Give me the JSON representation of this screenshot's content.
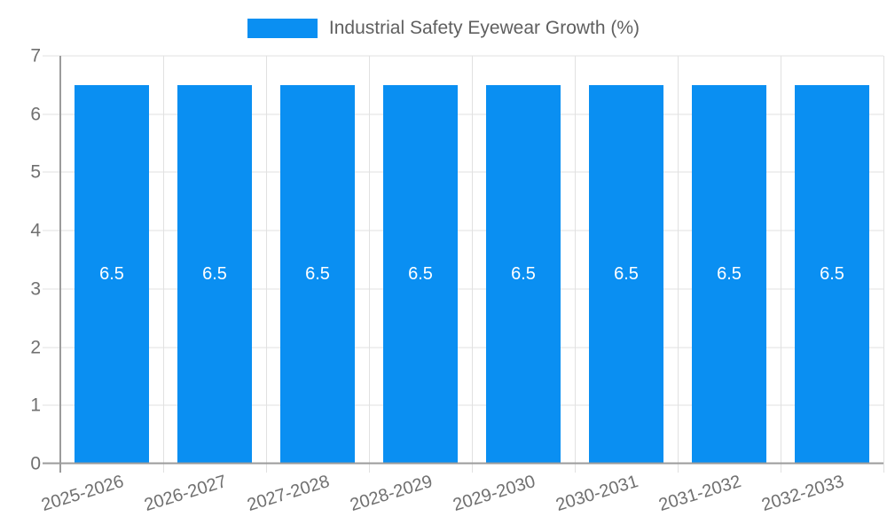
{
  "chart_data": {
    "type": "bar",
    "title": "Industrial Safety Eyewear Growth (%)",
    "categories": [
      "2025-2026",
      "2026-2027",
      "2027-2028",
      "2028-2029",
      "2029-2030",
      "2030-2031",
      "2031-2032",
      "2032-2033"
    ],
    "values": [
      6.5,
      6.5,
      6.5,
      6.5,
      6.5,
      6.5,
      6.5,
      6.5
    ],
    "bar_labels": [
      "6.5",
      "6.5",
      "6.5",
      "6.5",
      "6.5",
      "6.5",
      "6.5",
      "6.5"
    ],
    "xlabel": "",
    "ylabel": "",
    "ylim": [
      0,
      7
    ],
    "yticks": [
      0,
      1,
      2,
      3,
      4,
      5,
      6,
      7
    ],
    "grid": true,
    "legend_position": "top",
    "x_tick_rotation_deg": -17,
    "colors": {
      "bar": "#0a8ff2",
      "grid_line": "#e1e1e1",
      "axis_line": "#9b9b9b",
      "tick_text": "#707070",
      "legend_text": "#5f5f5f",
      "bar_label_text": "#ffffff",
      "background": "#ffffff"
    }
  }
}
